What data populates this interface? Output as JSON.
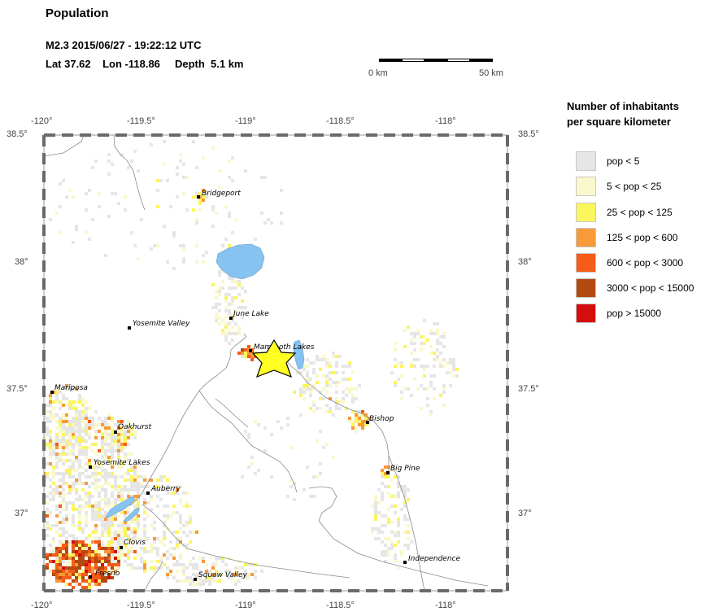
{
  "header": {
    "title": "Population",
    "event_line": "M2.3  2015/06/27 - 19:22:12 UTC",
    "location_line": "Lat 37.62    Lon -118.86     Depth  5.1 km"
  },
  "scale_bar": {
    "label_start": "0 km",
    "label_end": "50 km"
  },
  "legend": {
    "title_line1": "Number of inhabitants",
    "title_line2": "per square kilometer",
    "items": [
      {
        "label": "pop < 5",
        "color": "#e6e6e6"
      },
      {
        "label": "5 < pop < 25",
        "color": "#f9f8cc"
      },
      {
        "label": "25 < pop < 125",
        "color": "#fbf55e"
      },
      {
        "label": "125 < pop < 600",
        "color": "#f8993a"
      },
      {
        "label": "600 < pop < 3000",
        "color": "#f65b18"
      },
      {
        "label": "3000 < pop < 15000",
        "color": "#b34a10"
      },
      {
        "label": "pop > 15000",
        "color": "#d40d0d"
      }
    ]
  },
  "axes": {
    "lon_ticks": [
      "-120°",
      "-119.5°",
      "-119°",
      "-118.5°",
      "-118°"
    ],
    "lat_ticks": [
      "38.5°",
      "38°",
      "37.5°",
      "37°"
    ]
  },
  "epicenter": {
    "lat": 37.62,
    "lon": -118.86,
    "color": "#ffff22"
  },
  "water_color": "#87c3f0",
  "places": [
    {
      "name": "Bridgeport"
    },
    {
      "name": "June Lake"
    },
    {
      "name": "Yosemite Valley"
    },
    {
      "name": "Mammoth Lakes"
    },
    {
      "name": "Mariposa"
    },
    {
      "name": "Oakhurst"
    },
    {
      "name": "Bishop"
    },
    {
      "name": "Yosemite Lakes"
    },
    {
      "name": "Big Pine"
    },
    {
      "name": "Auberry"
    },
    {
      "name": "Clovis"
    },
    {
      "name": "Fresno"
    },
    {
      "name": "Independence"
    },
    {
      "name": "Squaw Valley"
    }
  ]
}
